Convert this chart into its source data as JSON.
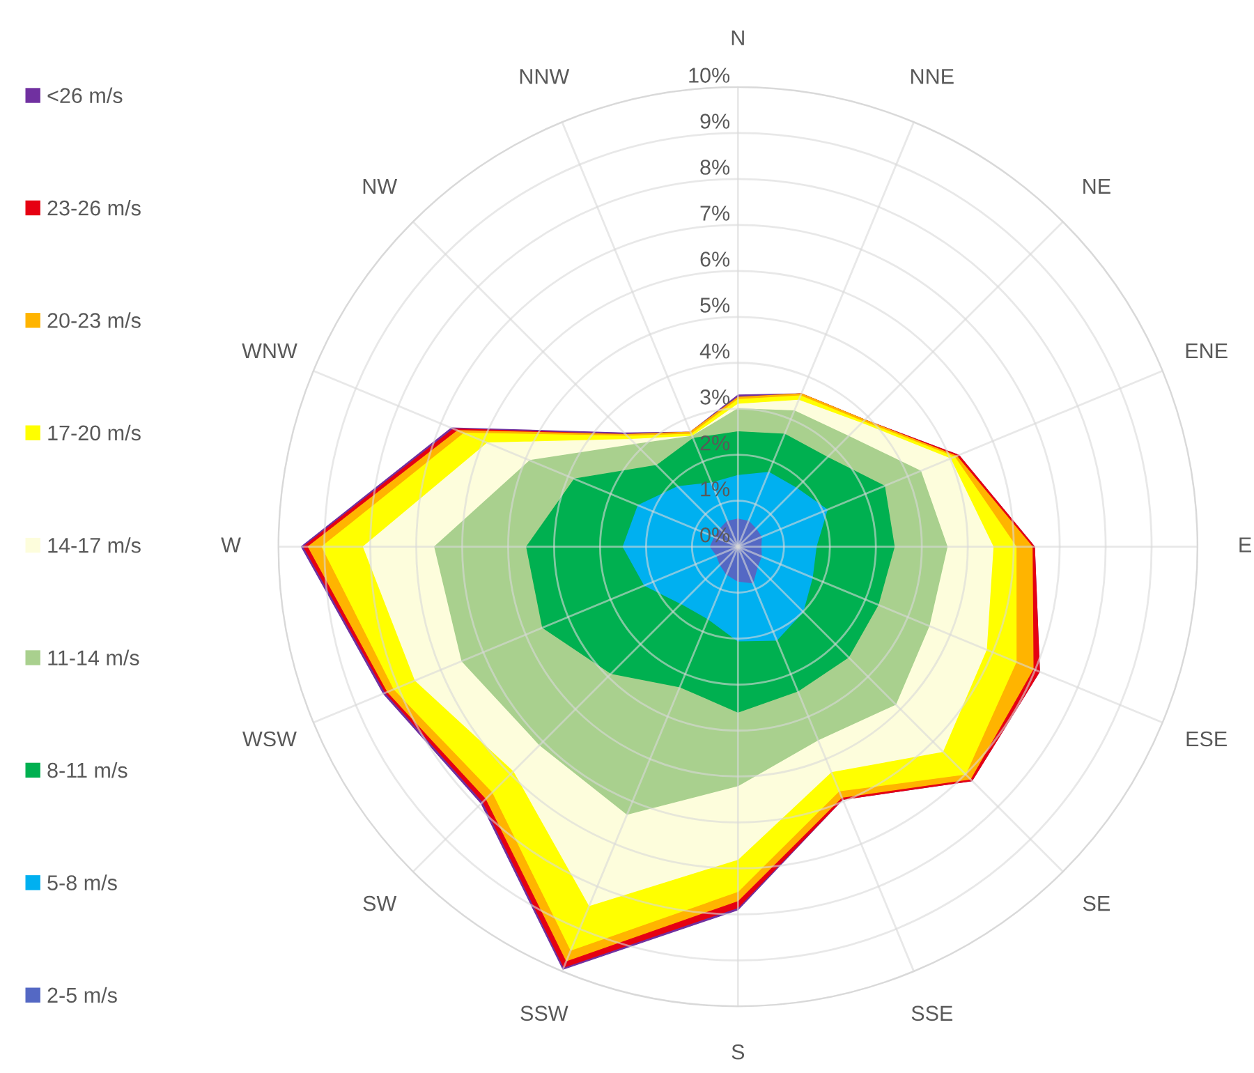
{
  "chart_data": {
    "type": "radar",
    "categories": [
      "N",
      "NNE",
      "NE",
      "ENE",
      "E",
      "ESE",
      "SE",
      "SSE",
      "S",
      "SSW",
      "SW",
      "WSW",
      "W",
      "WNW",
      "NW",
      "NNW"
    ],
    "series": [
      {
        "name": "<26 m/s",
        "color": "#7030a0",
        "values": [
          3.3,
          3.6,
          3.9,
          5.2,
          6.45,
          7.1,
          7.2,
          5.95,
          7.9,
          9.95,
          7.9,
          8.35,
          9.5,
          6.75,
          3.5,
          2.7
        ]
      },
      {
        "name": "23-26 m/s",
        "color": "#e60012",
        "values": [
          3.25,
          3.6,
          3.9,
          5.2,
          6.45,
          7.1,
          7.2,
          5.95,
          7.85,
          9.9,
          7.85,
          8.3,
          9.45,
          6.7,
          3.45,
          2.7
        ]
      },
      {
        "name": "20-23 m/s",
        "color": "#ffb400",
        "values": [
          3.25,
          3.6,
          3.9,
          5.15,
          6.4,
          6.95,
          7.15,
          5.9,
          7.7,
          9.75,
          7.75,
          8.25,
          9.35,
          6.6,
          3.45,
          2.7
        ]
      },
      {
        "name": "17-20 m/s",
        "color": "#ffff00",
        "values": [
          3.2,
          3.55,
          3.85,
          5.1,
          6.05,
          6.55,
          7.0,
          5.75,
          7.5,
          9.5,
          7.55,
          8.1,
          9.05,
          6.45,
          3.4,
          2.65
        ]
      },
      {
        "name": "14-17 m/s",
        "color": "#fdfddc",
        "values": [
          3.1,
          3.45,
          3.8,
          5.0,
          5.55,
          5.85,
          6.3,
          5.3,
          6.8,
          8.45,
          6.9,
          7.6,
          8.15,
          5.9,
          3.3,
          2.6
        ]
      },
      {
        "name": "11-14 m/s",
        "color": "#a9d08e",
        "values": [
          3.0,
          3.2,
          3.4,
          4.3,
          4.55,
          4.5,
          4.85,
          4.55,
          5.2,
          6.3,
          6.1,
          6.5,
          6.6,
          4.9,
          3.15,
          2.6
        ]
      },
      {
        "name": "8-11 m/s",
        "color": "#00b050",
        "values": [
          2.5,
          2.65,
          2.75,
          3.45,
          3.4,
          3.3,
          3.4,
          3.4,
          3.6,
          3.3,
          3.9,
          4.6,
          4.6,
          3.85,
          2.5,
          2.55
        ]
      },
      {
        "name": "5-8 m/s",
        "color": "#00b0f0",
        "values": [
          1.55,
          1.75,
          1.8,
          2.1,
          1.7,
          1.75,
          2.0,
          2.2,
          2.05,
          1.7,
          1.75,
          2.2,
          2.5,
          2.35,
          1.85,
          1.5
        ]
      },
      {
        "name": "2-5 m/s",
        "color": "#5468c4",
        "values": [
          0.6,
          0.6,
          0.55,
          0.55,
          0.5,
          0.55,
          0.6,
          0.85,
          0.75,
          0.65,
          0.55,
          0.5,
          0.6,
          0.55,
          0.55,
          0.6
        ]
      }
    ],
    "ylim": [
      0,
      10
    ],
    "yticks": [
      {
        "value": 0,
        "label": "0%"
      },
      {
        "value": 1,
        "label": "1%"
      },
      {
        "value": 2,
        "label": "2%"
      },
      {
        "value": 3,
        "label": "3%"
      },
      {
        "value": 4,
        "label": "4%"
      },
      {
        "value": 5,
        "label": "5%"
      },
      {
        "value": 6,
        "label": "6%"
      },
      {
        "value": 7,
        "label": "7%"
      },
      {
        "value": 8,
        "label": "8%"
      },
      {
        "value": 9,
        "label": "9%"
      },
      {
        "value": 10,
        "label": "10%"
      }
    ],
    "grid": true,
    "legend": "left"
  }
}
